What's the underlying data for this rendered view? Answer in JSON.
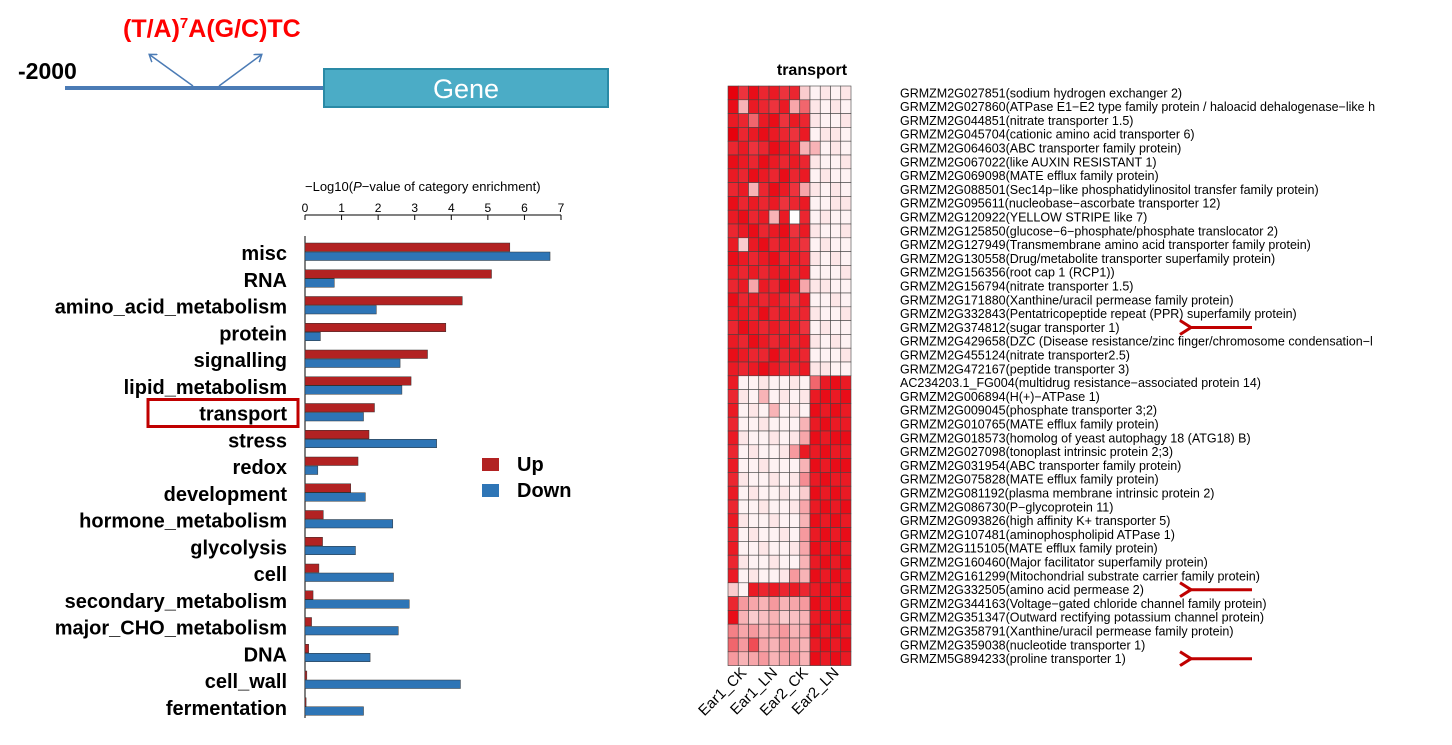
{
  "colors": {
    "up": "#b22222",
    "down": "#2e75b6",
    "promoter_line": "#4b7bb5",
    "gene_fill": "#4bacc6",
    "gene_border": "#2a8aa6",
    "motif_text": "#ff0000",
    "highlight_box": "#c00000",
    "arrow": "#c00000",
    "heat_low": "#ffffff",
    "heat_high": "#e8000c"
  },
  "promoter": {
    "motif_base": "(T/A)",
    "motif_sup": "7",
    "motif_rest": "A(G/C)TC",
    "position": "-2000",
    "gene_label": "Gene"
  },
  "chart_data": [
    {
      "type": "bar",
      "orientation": "horizontal",
      "title": "",
      "xlabel_prefix": "−Log10(",
      "xlabel_italic": "P",
      "xlabel_suffix": "−value of category enrichment)",
      "xlim": [
        0,
        7
      ],
      "xticks": [
        "0",
        "1",
        "2",
        "3",
        "4",
        "5",
        "6",
        "7"
      ],
      "highlighted_category": "transport",
      "categories": [
        "misc",
        "RNA",
        "amino_acid_metabolism",
        "protein",
        "signalling",
        "lipid_metabolism",
        "transport",
        "stress",
        "redox",
        "development",
        "hormone_metabolism",
        "glycolysis",
        "cell",
        "secondary_metabolism",
        "major_CHO_metabolism",
        "DNA",
        "cell_wall",
        "fermentation"
      ],
      "series": [
        {
          "name": "Up",
          "color_key": "up",
          "values": [
            5.6,
            5.1,
            4.3,
            3.85,
            3.35,
            2.9,
            1.9,
            1.75,
            1.45,
            1.25,
            0.5,
            0.48,
            0.38,
            0.22,
            0.18,
            0.1,
            0.05,
            0.03
          ]
        },
        {
          "name": "Down",
          "color_key": "down",
          "values": [
            6.7,
            0.8,
            1.95,
            0.42,
            2.6,
            2.65,
            1.6,
            3.6,
            0.35,
            1.65,
            2.4,
            1.38,
            2.42,
            2.85,
            2.55,
            1.78,
            4.25,
            1.6
          ]
        }
      ],
      "legend": {
        "position": "right",
        "entries": [
          "Up",
          "Down"
        ]
      }
    },
    {
      "type": "heatmap",
      "title": "transport",
      "columns": [
        "Ear1_CK",
        "Ear1_CK",
        "Ear1_CK",
        "Ear1_LN",
        "Ear1_LN",
        "Ear1_LN",
        "Ear2_CK",
        "Ear2_CK",
        "Ear2_CK",
        "Ear2_LN",
        "Ear2_LN",
        "Ear2_LN"
      ],
      "column_labels": [
        "Ear1_CK",
        "Ear1_LN",
        "Ear2_CK",
        "Ear2_LN"
      ],
      "rows": [
        "GRMZM2G027851(sodium hydrogen exchanger 2)",
        "GRMZM2G027860(ATPase E1−E2 type family protein / haloacid dehalogenase−like h",
        "GRMZM2G044851(nitrate transporter 1.5)",
        "GRMZM2G045704(cationic amino acid transporter 6)",
        "GRMZM2G064603(ABC transporter family protein)",
        "GRMZM2G067022(like AUXIN RESISTANT 1)",
        "GRMZM2G069098(MATE efflux family protein)",
        "GRMZM2G088501(Sec14p−like phosphatidylinositol transfer family protein)",
        "GRMZM2G095611(nucleobase−ascorbate transporter 12)",
        "GRMZM2G120922(YELLOW STRIPE like 7)",
        "GRMZM2G125850(glucose−6−phosphate/phosphate translocator 2)",
        "GRMZM2G127949(Transmembrane amino acid transporter family protein)",
        "GRMZM2G130558(Drug/metabolite transporter superfamily protein)",
        "GRMZM2G156356(root cap 1 (RCP1))",
        "GRMZM2G156794(nitrate transporter 1.5)",
        "GRMZM2G171880(Xanthine/uracil permease family protein)",
        "GRMZM2G332843(Pentatricopeptide repeat (PPR) superfamily protein)",
        "GRMZM2G374812(sugar transporter 1)",
        "GRMZM2G429658(DZC (Disease resistance/zinc finger/chromosome condensation−l",
        "GRMZM2G455124(nitrate transporter2.5)",
        "GRMZM2G472167(peptide transporter 3)",
        "AC234203.1_FG004(multidrug resistance−associated protein 14)",
        "GRMZM2G006894(H(+)−ATPase 1)",
        "GRMZM2G009045(phosphate transporter 3;2)",
        "GRMZM2G010765(MATE efflux family protein)",
        "GRMZM2G018573(homolog of yeast autophagy 18 (ATG18) B)",
        "GRMZM2G027098(tonoplast intrinsic protein 2;3)",
        "GRMZM2G031954(ABC transporter family protein)",
        "GRMZM2G075828(MATE efflux family protein)",
        "GRMZM2G081192(plasma membrane intrinsic protein 2)",
        "GRMZM2G086730(P−glycoprotein 11)",
        "GRMZM2G093826(high affinity K+ transporter 5)",
        "GRMZM2G107481(aminophospholipid ATPase 1)",
        "GRMZM2G115105(MATE efflux family protein)",
        "GRMZM2G160460(Major facilitator superfamily protein)",
        "GRMZM2G161299(Mitochondrial substrate carrier family protein)",
        "GRMZM2G332505(amino acid permease 2)",
        "GRMZM2G344163(Voltage−gated chloride channel family protein)",
        "GRMZM2G351347(Outward rectifying potassium channel protein)",
        "GRMZM2G358791(Xanthine/uracil permease family protein)",
        "GRMZM2G359038(nucleotide transporter 1)",
        "GRMZM5G894233(proline transporter 1)"
      ],
      "values": [
        [
          1.0,
          0.8,
          0.95,
          0.85,
          0.9,
          0.8,
          0.85,
          0.2,
          0.05,
          0.1,
          0.05,
          0.1
        ],
        [
          0.95,
          0.3,
          0.9,
          0.85,
          0.8,
          0.9,
          0.35,
          0.6,
          0.1,
          0.05,
          0.1,
          0.05
        ],
        [
          0.9,
          0.85,
          0.6,
          0.9,
          0.95,
          0.8,
          0.9,
          0.85,
          0.1,
          0.05,
          0.05,
          0.1
        ],
        [
          1.0,
          0.85,
          0.9,
          0.95,
          0.9,
          0.85,
          0.8,
          0.9,
          0.05,
          0.1,
          0.1,
          0.05
        ],
        [
          0.85,
          0.9,
          0.8,
          0.85,
          0.95,
          0.9,
          0.85,
          0.3,
          0.3,
          0.05,
          0.1,
          0.05
        ],
        [
          0.95,
          0.9,
          0.85,
          0.95,
          0.9,
          0.85,
          0.9,
          0.85,
          0.1,
          0.05,
          0.05,
          0.1
        ],
        [
          0.9,
          0.85,
          0.95,
          0.9,
          0.85,
          0.95,
          0.85,
          0.9,
          0.05,
          0.1,
          0.05,
          0.05
        ],
        [
          0.85,
          0.9,
          0.3,
          0.85,
          0.95,
          0.9,
          0.8,
          0.35,
          0.1,
          0.05,
          0.1,
          0.05
        ],
        [
          0.95,
          0.85,
          0.9,
          0.85,
          0.9,
          0.8,
          0.85,
          0.9,
          0.05,
          0.05,
          0.1,
          0.1
        ],
        [
          0.9,
          0.95,
          0.85,
          0.9,
          0.3,
          0.9,
          0.0,
          0.85,
          0.05,
          0.1,
          0.05,
          0.05
        ],
        [
          0.85,
          0.9,
          0.95,
          0.85,
          0.9,
          0.95,
          0.8,
          0.9,
          0.1,
          0.05,
          0.05,
          0.1
        ],
        [
          0.9,
          0.2,
          0.9,
          0.95,
          0.85,
          0.9,
          0.85,
          0.8,
          0.05,
          0.1,
          0.05,
          0.05
        ],
        [
          0.95,
          0.9,
          0.85,
          0.9,
          0.95,
          0.85,
          0.9,
          0.85,
          0.1,
          0.05,
          0.1,
          0.05
        ],
        [
          0.9,
          0.85,
          0.9,
          0.85,
          0.9,
          0.9,
          0.85,
          0.9,
          0.05,
          0.05,
          0.05,
          0.1
        ],
        [
          0.85,
          0.9,
          0.35,
          0.9,
          0.85,
          0.95,
          0.9,
          0.35,
          0.1,
          0.1,
          0.05,
          0.05
        ],
        [
          0.95,
          0.85,
          0.9,
          0.85,
          0.9,
          0.85,
          0.8,
          0.9,
          0.05,
          0.05,
          0.1,
          0.05
        ],
        [
          0.9,
          0.9,
          0.85,
          0.95,
          0.85,
          0.9,
          0.85,
          0.85,
          0.1,
          0.05,
          0.05,
          0.1
        ],
        [
          0.85,
          0.95,
          0.9,
          0.85,
          0.9,
          0.85,
          0.9,
          0.8,
          0.05,
          0.1,
          0.05,
          0.05
        ],
        [
          0.9,
          0.85,
          0.95,
          0.9,
          0.85,
          0.9,
          0.85,
          0.9,
          0.1,
          0.05,
          0.1,
          0.05
        ],
        [
          0.95,
          0.9,
          0.85,
          0.85,
          0.95,
          0.85,
          0.9,
          0.85,
          0.05,
          0.05,
          0.05,
          0.1
        ],
        [
          0.9,
          0.85,
          0.9,
          0.95,
          0.9,
          0.85,
          0.85,
          0.9,
          0.1,
          0.1,
          0.05,
          0.05
        ],
        [
          0.9,
          0.05,
          0.05,
          0.1,
          0.05,
          0.05,
          0.1,
          0.05,
          0.6,
          0.9,
          0.95,
          0.9
        ],
        [
          0.85,
          0.1,
          0.05,
          0.3,
          0.05,
          0.1,
          0.05,
          0.1,
          0.9,
          0.95,
          0.9,
          0.95
        ],
        [
          0.9,
          0.05,
          0.1,
          0.05,
          0.3,
          0.05,
          0.1,
          0.05,
          0.95,
          0.9,
          0.95,
          0.9
        ],
        [
          0.85,
          0.05,
          0.05,
          0.1,
          0.05,
          0.05,
          0.05,
          0.3,
          0.9,
          0.95,
          0.9,
          0.9
        ],
        [
          0.9,
          0.1,
          0.05,
          0.05,
          0.1,
          0.05,
          0.1,
          0.35,
          0.95,
          0.9,
          0.95,
          0.95
        ],
        [
          0.85,
          0.05,
          0.1,
          0.05,
          0.05,
          0.1,
          0.4,
          0.9,
          0.9,
          0.95,
          0.9,
          0.9
        ],
        [
          0.9,
          0.05,
          0.05,
          0.1,
          0.05,
          0.05,
          0.05,
          0.3,
          0.95,
          0.9,
          0.95,
          0.95
        ],
        [
          0.85,
          0.1,
          0.05,
          0.05,
          0.1,
          0.05,
          0.1,
          0.45,
          0.9,
          0.95,
          0.9,
          0.9
        ],
        [
          0.9,
          0.05,
          0.1,
          0.05,
          0.05,
          0.1,
          0.05,
          0.2,
          0.95,
          0.9,
          0.95,
          0.9
        ],
        [
          0.85,
          0.05,
          0.05,
          0.1,
          0.05,
          0.05,
          0.1,
          0.35,
          0.9,
          0.95,
          0.9,
          0.95
        ],
        [
          0.9,
          0.1,
          0.05,
          0.05,
          0.1,
          0.05,
          0.05,
          0.3,
          0.95,
          0.9,
          0.95,
          0.9
        ],
        [
          0.85,
          0.05,
          0.1,
          0.05,
          0.05,
          0.1,
          0.05,
          0.4,
          0.9,
          0.95,
          0.9,
          0.95
        ],
        [
          0.9,
          0.05,
          0.05,
          0.1,
          0.05,
          0.05,
          0.1,
          0.35,
          0.95,
          0.9,
          0.95,
          0.9
        ],
        [
          0.85,
          0.1,
          0.05,
          0.05,
          0.1,
          0.05,
          0.05,
          0.3,
          0.9,
          0.95,
          0.9,
          0.95
        ],
        [
          0.9,
          0.05,
          0.1,
          0.05,
          0.05,
          0.1,
          0.4,
          0.3,
          0.95,
          0.9,
          0.95,
          0.9
        ],
        [
          0.2,
          0.05,
          0.9,
          0.85,
          0.9,
          0.85,
          0.9,
          0.85,
          0.9,
          0.95,
          0.9,
          0.95
        ],
        [
          0.85,
          0.4,
          0.35,
          0.3,
          0.4,
          0.3,
          0.35,
          0.4,
          0.95,
          0.9,
          0.95,
          0.9
        ],
        [
          0.95,
          0.3,
          0.2,
          0.25,
          0.3,
          0.2,
          0.25,
          0.3,
          0.9,
          0.95,
          0.9,
          0.95
        ],
        [
          0.5,
          0.35,
          0.4,
          0.3,
          0.35,
          0.4,
          0.3,
          0.35,
          0.95,
          0.9,
          0.95,
          0.9
        ],
        [
          0.6,
          0.4,
          0.7,
          0.35,
          0.3,
          0.4,
          0.35,
          0.3,
          0.9,
          0.95,
          0.9,
          0.95
        ],
        [
          0.4,
          0.3,
          0.35,
          0.4,
          0.3,
          0.35,
          0.4,
          0.3,
          0.95,
          0.9,
          0.95,
          0.9
        ]
      ],
      "arrows_on_rows": [
        "GRMZM2G374812(sugar transporter 1)",
        "GRMZM2G332505(amino acid permease 2)",
        "GRMZM5G894233(proline transporter 1)"
      ]
    }
  ]
}
